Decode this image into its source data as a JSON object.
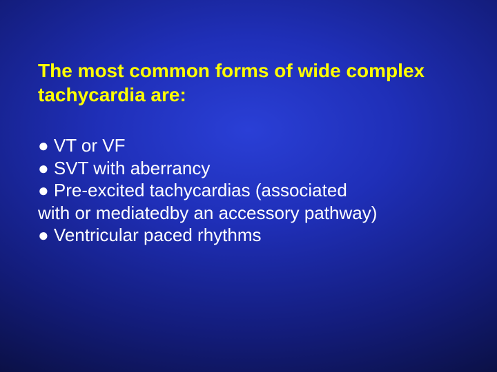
{
  "slide": {
    "background": {
      "type": "radial-gradient",
      "center_color": "#2a3fd6",
      "mid_color": "#131c7a",
      "edge_color": "#050720"
    },
    "title": {
      "text": "The most common forms of wide complex tachycardia are:",
      "color": "#ffff00",
      "fontsize_pt": 21,
      "font_weight": "bold"
    },
    "body": {
      "color": "#ffffff",
      "fontsize_pt": 20,
      "lines": [
        "● VT or VF",
        "● SVT with aberrancy",
        "● Pre-excited tachycardias (associated",
        "with or mediatedby an accessory pathway)",
        "● Ventricular paced rhythms"
      ]
    }
  }
}
